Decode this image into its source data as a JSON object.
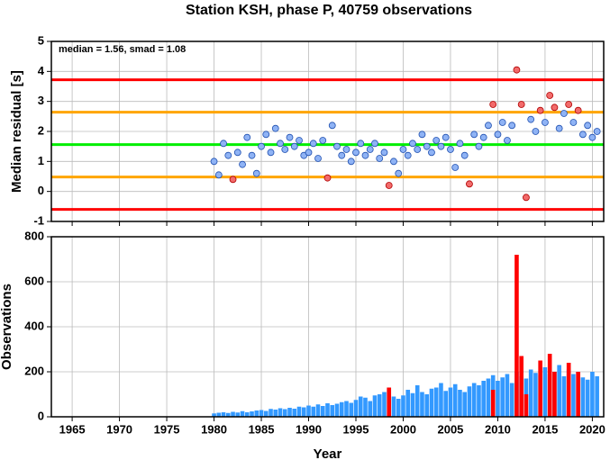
{
  "chart_data": [
    {
      "type": "scatter",
      "title": "Station KSH, phase P, 40759 observations",
      "y_label": "Median residual [s]",
      "annotation": "median = 1.56, smad = 1.08",
      "xlim": [
        1962.8,
        2021.2
      ],
      "xticks": [
        1965,
        1970,
        1975,
        1980,
        1985,
        1990,
        1995,
        2000,
        2005,
        2010,
        2015,
        2020
      ],
      "ylim": [
        -1,
        5
      ],
      "yticks": [
        -1,
        0,
        1,
        2,
        3,
        4,
        5
      ],
      "grid": true,
      "reference_lines": [
        {
          "value": 3.72,
          "color": "#ff0000"
        },
        {
          "value": 2.64,
          "color": "#ffa500"
        },
        {
          "value": 1.56,
          "color": "#00ee00"
        },
        {
          "value": 0.48,
          "color": "#ffa500"
        },
        {
          "value": -0.6,
          "color": "#ff0000"
        }
      ],
      "series": [
        {
          "color": "#8fb3f5",
          "edge_color": "#2050b0",
          "x": [
            1980,
            1980.5,
            1981,
            1981.5,
            1982.5,
            1983,
            1983.5,
            1984,
            1984.5,
            1985,
            1985.5,
            1986,
            1986.5,
            1987,
            1987.5,
            1988,
            1988.5,
            1989,
            1989.5,
            1990,
            1990.5,
            1991,
            1991.5,
            1992.5,
            1993,
            1993.5,
            1994,
            1994.5,
            1995,
            1995.5,
            1996,
            1996.5,
            1997,
            1997.5,
            1998,
            1999,
            1999.5,
            2000,
            2000.5,
            2001,
            2001.5,
            2002,
            2002.5,
            2003,
            2003.5,
            2004,
            2004.5,
            2005,
            2005.5,
            2006,
            2006.5,
            2007.5,
            2008,
            2008.5,
            2009,
            2010,
            2010.5,
            2011,
            2011.5,
            2013.5,
            2014,
            2015,
            2016.5,
            2017,
            2018,
            2019,
            2019.5,
            2020,
            2020.5
          ],
          "values": [
            1.0,
            0.55,
            1.6,
            1.2,
            1.3,
            0.9,
            1.8,
            1.2,
            0.6,
            1.5,
            1.9,
            1.3,
            2.1,
            1.6,
            1.4,
            1.8,
            1.5,
            1.7,
            1.2,
            1.3,
            1.6,
            1.1,
            1.7,
            2.2,
            1.5,
            1.2,
            1.4,
            1.0,
            1.3,
            1.6,
            1.2,
            1.4,
            1.6,
            1.1,
            1.3,
            1.0,
            0.6,
            1.4,
            1.2,
            1.6,
            1.4,
            1.9,
            1.5,
            1.3,
            1.7,
            1.5,
            1.8,
            1.4,
            0.8,
            1.6,
            1.2,
            1.9,
            1.5,
            1.8,
            2.2,
            1.9,
            2.3,
            1.7,
            2.2,
            2.4,
            2.0,
            2.3,
            2.1,
            2.6,
            2.3,
            1.9,
            2.2,
            1.8,
            2.0
          ]
        },
        {
          "color": "#f26b6b",
          "edge_color": "#b00000",
          "x": [
            1982,
            1992,
            1998.5,
            2007,
            2009.5,
            2012,
            2012.5,
            2013,
            2014.5,
            2015.5,
            2016,
            2017.5,
            2018.5
          ],
          "values": [
            0.4,
            0.45,
            0.2,
            0.25,
            2.9,
            4.05,
            2.9,
            -0.2,
            2.7,
            3.2,
            2.8,
            2.9,
            2.7
          ]
        }
      ]
    },
    {
      "type": "bar",
      "x_label": "Year",
      "y_label": "Observations",
      "xlim": [
        1962.8,
        2021.2
      ],
      "xticks": [
        1965,
        1970,
        1975,
        1980,
        1985,
        1990,
        1995,
        2000,
        2005,
        2010,
        2015,
        2020
      ],
      "ylim": [
        0,
        800
      ],
      "yticks": [
        0,
        200,
        400,
        600,
        800
      ],
      "grid": true,
      "series": [
        {
          "color": "#3399ff",
          "x": [
            1980,
            1980.5,
            1981,
            1981.5,
            1982,
            1982.5,
            1983,
            1983.5,
            1984,
            1984.5,
            1985,
            1985.5,
            1986,
            1986.5,
            1987,
            1987.5,
            1988,
            1988.5,
            1989,
            1989.5,
            1990,
            1990.5,
            1991,
            1991.5,
            1992,
            1992.5,
            1993,
            1993.5,
            1994,
            1994.5,
            1995,
            1995.5,
            1996,
            1996.5,
            1997,
            1997.5,
            1998,
            1998.5,
            1999,
            1999.5,
            2000,
            2000.5,
            2001,
            2001.5,
            2002,
            2002.5,
            2003,
            2003.5,
            2004,
            2004.5,
            2005,
            2005.5,
            2006,
            2006.5,
            2007,
            2007.5,
            2008,
            2008.5,
            2009,
            2009.5,
            2010,
            2010.5,
            2011,
            2011.5,
            2012,
            2012.5,
            2013,
            2013.5,
            2014,
            2014.5,
            2015,
            2015.5,
            2016,
            2016.5,
            2017,
            2017.5,
            2018,
            2018.5,
            2019,
            2019.5,
            2020,
            2020.5
          ],
          "values": [
            15,
            18,
            20,
            17,
            22,
            19,
            25,
            20,
            24,
            28,
            30,
            26,
            35,
            32,
            38,
            34,
            40,
            36,
            45,
            42,
            50,
            45,
            55,
            48,
            60,
            52,
            58,
            65,
            70,
            62,
            75,
            90,
            85,
            70,
            95,
            100,
            110,
            130,
            90,
            80,
            95,
            120,
            105,
            140,
            110,
            100,
            125,
            130,
            150,
            115,
            130,
            145,
            120,
            110,
            135,
            150,
            140,
            160,
            170,
            185,
            160,
            175,
            190,
            150,
            200,
            180,
            170,
            210,
            195,
            185,
            220,
            190,
            200,
            230,
            180,
            210,
            190,
            200,
            175,
            165,
            200,
            180
          ]
        },
        {
          "color": "#ff0000",
          "x": [
            1998.5,
            2009.5,
            2012,
            2012.5,
            2013,
            2014.5,
            2015.5,
            2016,
            2017.5,
            2018.5
          ],
          "values": [
            130,
            120,
            720,
            270,
            100,
            250,
            280,
            200,
            240,
            200
          ]
        }
      ]
    }
  ]
}
